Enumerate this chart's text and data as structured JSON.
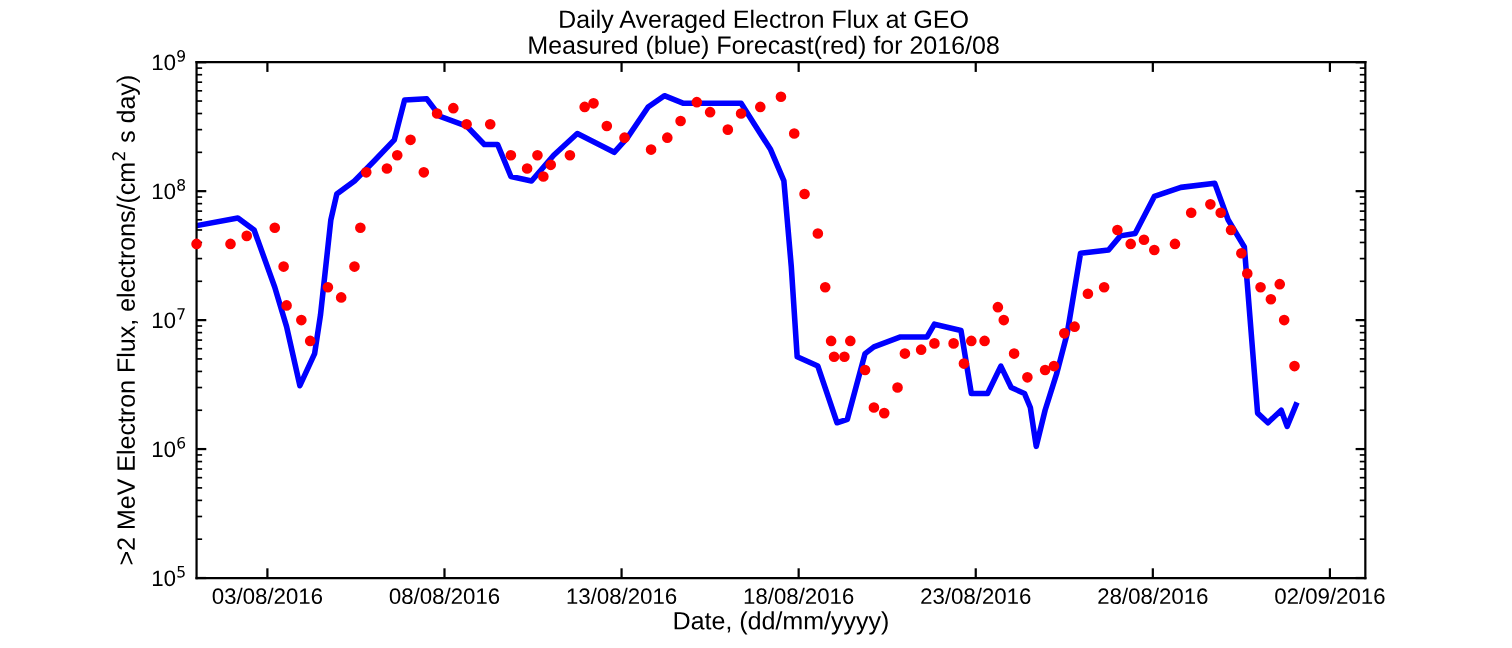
{
  "chart_data": {
    "type": "line",
    "title": "Daily Averaged Electron Flux at GEO",
    "subtitle": "Measured (blue) Forecast(red) for 2016/08",
    "xlabel": "Date, (dd/mm/yyyy)",
    "ylabel": ">2 MeV Electron Flux, electrons/(cm$^{2}$ s day)",
    "log": "y",
    "grid": false,
    "legend": false,
    "xlim": [
      "2016-08-01T00:00",
      "2016-09-03T00:00"
    ],
    "xticks": [
      {
        "value": "2016-08-03",
        "label": "03/08/2016"
      },
      {
        "value": "2016-08-08",
        "label": "08/08/2016"
      },
      {
        "value": "2016-08-13",
        "label": "13/08/2016"
      },
      {
        "value": "2016-08-18",
        "label": "18/08/2016"
      },
      {
        "value": "2016-08-23",
        "label": "23/08/2016"
      },
      {
        "value": "2016-08-28",
        "label": "28/08/2016"
      },
      {
        "value": "2016-09-02",
        "label": "02/09/2016"
      }
    ],
    "ylim": [
      100000,
      1000000000
    ],
    "yticks": [
      {
        "value": 100000,
        "label": "10$^{5}$"
      },
      {
        "value": 1000000,
        "label": "10$^{6}$"
      },
      {
        "value": 10000000,
        "label": "10$^{7}$"
      },
      {
        "value": 100000000,
        "label": "10$^{8}$"
      },
      {
        "value": 1000000000,
        "label": "10$^{9}$"
      }
    ],
    "series": [
      {
        "color": "#0000ff",
        "line_style": "solid",
        "marker": "none",
        "x": [
          "2016-08-01T00:00",
          "2016-08-02T04:00",
          "2016-08-02T15:00",
          "2016-08-03T05:00",
          "2016-08-03T13:00",
          "2016-08-03T22:00",
          "2016-08-04T08:00",
          "2016-08-04T12:00",
          "2016-08-04T19:00",
          "2016-08-04T23:00",
          "2016-08-05T11:00",
          "2016-08-06T00:00",
          "2016-08-06T14:00",
          "2016-08-06T21:00",
          "2016-08-07T12:00",
          "2016-08-07T21:00",
          "2016-08-08T15:00",
          "2016-08-09T03:00",
          "2016-08-09T12:00",
          "2016-08-09T21:00",
          "2016-08-10T11:00",
          "2016-08-11T02:00",
          "2016-08-11T18:00",
          "2016-08-12T19:00",
          "2016-08-13T04:00",
          "2016-08-13T18:00",
          "2016-08-14T05:00",
          "2016-08-14T18:00",
          "2016-08-16T09:00",
          "2016-08-16T18:00",
          "2016-08-17T05:00",
          "2016-08-17T14:00",
          "2016-08-17T19:00",
          "2016-08-17T23:00",
          "2016-08-18T13:00",
          "2016-08-19T02:00",
          "2016-08-19T09:00",
          "2016-08-19T21:00",
          "2016-08-20T03:00",
          "2016-08-20T21:00",
          "2016-08-21T15:00",
          "2016-08-21T20:00",
          "2016-08-22T14:00",
          "2016-08-22T21:00",
          "2016-08-23T08:00",
          "2016-08-23T17:00",
          "2016-08-24T00:00",
          "2016-08-24T09:00",
          "2016-08-24T13:00",
          "2016-08-24T17:00",
          "2016-08-24T23:00",
          "2016-08-25T07:00",
          "2016-08-25T14:00",
          "2016-08-25T23:00",
          "2016-08-26T18:00",
          "2016-08-27T02:00",
          "2016-08-27T12:00",
          "2016-08-28T01:00",
          "2016-08-28T19:00",
          "2016-08-29T18:00",
          "2016-08-30T03:00",
          "2016-08-30T14:00",
          "2016-08-30T23:00",
          "2016-08-31T06:00",
          "2016-08-31T15:00",
          "2016-08-31T19:00",
          "2016-09-01T01:00"
        ],
        "values": [
          54000000.0,
          62000000.0,
          50000000.0,
          18000000.0,
          8900000.0,
          3100000.0,
          5500000.0,
          11000000.0,
          60000000.0,
          95000000.0,
          120000000.0,
          170000000.0,
          250000000.0,
          510000000.0,
          520000000.0,
          380000000.0,
          320000000.0,
          230000000.0,
          230000000.0,
          130000000.0,
          120000000.0,
          190000000.0,
          280000000.0,
          200000000.0,
          260000000.0,
          450000000.0,
          550000000.0,
          480000000.0,
          480000000.0,
          330000000.0,
          210000000.0,
          120000000.0,
          26000000.0,
          5200000.0,
          4400000.0,
          1600000.0,
          1700000.0,
          5500000.0,
          6200000.0,
          7400000.0,
          7400000.0,
          9300000.0,
          8300000.0,
          2700000.0,
          2700000.0,
          4400000.0,
          3000000.0,
          2700000.0,
          2100000.0,
          1050000.0,
          2000000.0,
          3900000.0,
          7900000.0,
          33000000.0,
          35000000.0,
          45000000.0,
          47000000.0,
          91000000.0,
          107000000.0,
          115000000.0,
          60000000.0,
          37000000.0,
          1900000.0,
          1600000.0,
          2000000.0,
          1500000.0,
          2200000.0
        ]
      },
      {
        "type": "scatter",
        "color": "#ff0000",
        "marker": "circle",
        "x": [
          "2016-08-01T00:00",
          "2016-08-01T23:00",
          "2016-08-02T10:00",
          "2016-08-03T05:00",
          "2016-08-03T11:00",
          "2016-08-03T13:00",
          "2016-08-03T23:00",
          "2016-08-04T05:00",
          "2016-08-04T17:00",
          "2016-08-05T02:00",
          "2016-08-05T11:00",
          "2016-08-05T15:00",
          "2016-08-05T19:00",
          "2016-08-06T09:00",
          "2016-08-06T16:00",
          "2016-08-07T01:00",
          "2016-08-07T10:00",
          "2016-08-07T19:00",
          "2016-08-08T06:00",
          "2016-08-08T15:00",
          "2016-08-09T07:00",
          "2016-08-09T21:00",
          "2016-08-10T08:00",
          "2016-08-10T15:00",
          "2016-08-10T19:00",
          "2016-08-11T00:00",
          "2016-08-11T13:00",
          "2016-08-11T23:00",
          "2016-08-12T05:00",
          "2016-08-12T14:00",
          "2016-08-13T02:00",
          "2016-08-13T20:00",
          "2016-08-14T07:00",
          "2016-08-14T16:00",
          "2016-08-15T03:00",
          "2016-08-15T12:00",
          "2016-08-16T00:00",
          "2016-08-16T09:00",
          "2016-08-16T22:00",
          "2016-08-17T12:00",
          "2016-08-17T21:00",
          "2016-08-18T04:00",
          "2016-08-18T13:00",
          "2016-08-18T18:00",
          "2016-08-18T22:00",
          "2016-08-19T00:00",
          "2016-08-19T07:00",
          "2016-08-19T11:00",
          "2016-08-19T21:00",
          "2016-08-20T03:00",
          "2016-08-20T10:00",
          "2016-08-20T19:00",
          "2016-08-21T00:00",
          "2016-08-21T11:00",
          "2016-08-21T20:00",
          "2016-08-22T09:00",
          "2016-08-22T16:00",
          "2016-08-22T21:00",
          "2016-08-23T06:00",
          "2016-08-23T15:00",
          "2016-08-23T19:00",
          "2016-08-24T02:00",
          "2016-08-24T11:00",
          "2016-08-24T23:00",
          "2016-08-25T05:00",
          "2016-08-25T12:00",
          "2016-08-25T19:00",
          "2016-08-26T04:00",
          "2016-08-26T15:00",
          "2016-08-27T00:00",
          "2016-08-27T09:00",
          "2016-08-27T18:00",
          "2016-08-28T01:00",
          "2016-08-28T15:00",
          "2016-08-29T02:00",
          "2016-08-29T15:00",
          "2016-08-29T22:00",
          "2016-08-30T05:00",
          "2016-08-30T12:00",
          "2016-08-30T16:00",
          "2016-08-31T01:00",
          "2016-08-31T08:00",
          "2016-08-31T14:00",
          "2016-08-31T17:00",
          "2016-09-01T00:00"
        ],
        "values": [
          39000000.0,
          39000000.0,
          45000000.0,
          52000000.0,
          26000000.0,
          13000000.0,
          10000000.0,
          6900000.0,
          18000000.0,
          15000000.0,
          26000000.0,
          52000000.0,
          140000000.0,
          150000000.0,
          190000000.0,
          250000000.0,
          140000000.0,
          400000000.0,
          440000000.0,
          330000000.0,
          330000000.0,
          190000000.0,
          150000000.0,
          190000000.0,
          130000000.0,
          160000000.0,
          190000000.0,
          450000000.0,
          480000000.0,
          320000000.0,
          260000000.0,
          210000000.0,
          260000000.0,
          350000000.0,
          490000000.0,
          410000000.0,
          300000000.0,
          400000000.0,
          450000000.0,
          540000000.0,
          280000000.0,
          95000000.0,
          47000000.0,
          18000000.0,
          6900000.0,
          5200000.0,
          5200000.0,
          6900000.0,
          4100000.0,
          2100000.0,
          1900000.0,
          3000000.0,
          5500000.0,
          5900000.0,
          6600000.0,
          6600000.0,
          4600000.0,
          6900000.0,
          6900000.0,
          12600000.0,
          10000000.0,
          5500000.0,
          3600000.0,
          4100000.0,
          4400000.0,
          7900000.0,
          8900000.0,
          16000000.0,
          18000000.0,
          50000000.0,
          39000000.0,
          42000000.0,
          35000000.0,
          39000000.0,
          68000000.0,
          79000000.0,
          68000000.0,
          50000000.0,
          33000000.0,
          23000000.0,
          18000000.0,
          14500000.0,
          19000000.0,
          10000000.0,
          4400000.0
        ]
      }
    ]
  }
}
